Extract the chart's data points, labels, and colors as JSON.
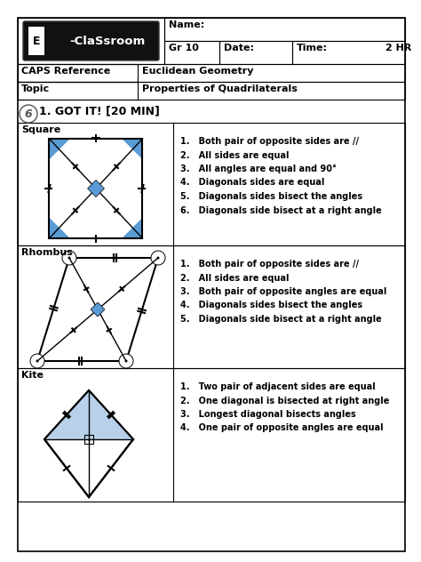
{
  "bg_color": "#ffffff",
  "header": {
    "name_label": "Name:",
    "gr_label": "Gr 10",
    "date_label": "Date:",
    "time_label": "Time:",
    "time_value": "2 HR"
  },
  "caps_ref": "CAPS Reference",
  "caps_val": "Euclidean Geometry",
  "topic_label": "Topic",
  "topic_val": "Properties of Quadrilaterals",
  "section": "1. GOT IT! [20 MIN]",
  "shapes": [
    {
      "name": "Square",
      "props": [
        "1.   Both pair of opposite sides are //",
        "2.   All sides are equal",
        "3.   All angles are equal and 90°",
        "4.   Diagonals sides are equal",
        "5.   Diagonals sides bisect the angles",
        "6.   Diagonals side bisect at a right angle"
      ]
    },
    {
      "name": "Rhombus",
      "props": [
        "1.   Both pair of opposite sides are //",
        "2.   All sides are equal",
        "3.   Both pair of opposite angles are equal",
        "4.   Diagonals sides bisect the angles",
        "5.   Diagonals side bisect at a right angle"
      ]
    },
    {
      "name": "Kite",
      "props": [
        "1.   Two pair of adjacent sides are equal",
        "2.   One diagonal is bisected at right angle",
        "3.   Longest diagonal bisects angles",
        "4.   One pair of opposite angles are equal"
      ]
    }
  ],
  "blue_fill": "#5b9bd5",
  "light_blue": "#b8d0e8",
  "corner_blue": "#6aade4"
}
